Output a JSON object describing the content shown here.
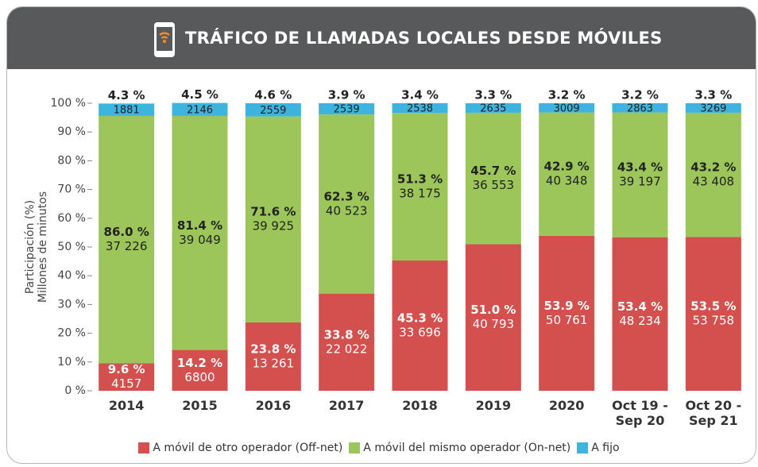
{
  "chart_data": {
    "type": "stacked_bar",
    "title": "TRÁFICO DE LLAMADAS LOCALES DESDE MÓVILES",
    "y_label": [
      "Participación (%)",
      "Millones de minutos"
    ],
    "categories": [
      "2014",
      "2015",
      "2016",
      "2017",
      "2018",
      "2019",
      "2020",
      "Oct 19 - Sep 20",
      "Oct 20 - Sep 21"
    ],
    "series": [
      {
        "name": "A móvil de otro operador (Off-net)",
        "color": "#d4504e",
        "values": [
          9.6,
          14.2,
          23.8,
          33.8,
          45.3,
          51.0,
          53.9,
          53.4,
          53.5
        ],
        "value_labels": [
          "9.6 %",
          "14.2 %",
          "23.8 %",
          "33.8 %",
          "45.3 %",
          "51.0 %",
          "53.9 %",
          "53.4 %",
          "53.5 %"
        ],
        "minutes": [
          4157,
          6800,
          13261,
          22022,
          33696,
          40793,
          50761,
          48234,
          53758
        ],
        "minutes_labels": [
          "4157",
          "6800",
          "13 261",
          "22 022",
          "33 696",
          "40 793",
          "50 761",
          "48 234",
          "53 758"
        ]
      },
      {
        "name": "A móvil del mismo operador (On-net)",
        "color": "#9cc55a",
        "values": [
          86.0,
          81.4,
          71.6,
          62.3,
          51.3,
          45.7,
          42.9,
          43.4,
          43.2
        ],
        "value_labels": [
          "86.0 %",
          "81.4 %",
          "71.6 %",
          "62.3 %",
          "51.3 %",
          "45.7 %",
          "42.9 %",
          "43.4 %",
          "43.2 %"
        ],
        "minutes": [
          37226,
          39049,
          39925,
          40523,
          38175,
          36553,
          40348,
          39197,
          43408
        ],
        "minutes_labels": [
          "37 226",
          "39 049",
          "39 925",
          "40 523",
          "38 175",
          "36 553",
          "40 348",
          "39 197",
          "43 408"
        ]
      },
      {
        "name": "A fijo",
        "color": "#3cb4de",
        "values": [
          4.3,
          4.5,
          4.6,
          3.9,
          3.4,
          3.3,
          3.2,
          3.2,
          3.3
        ],
        "value_labels": [
          "4.3 %",
          "4.5 %",
          "4.6 %",
          "3.9 %",
          "3.4 %",
          "3.3 %",
          "3.2 %",
          "3.2 %",
          "3.3 %"
        ],
        "minutes": [
          1881,
          2146,
          2559,
          2539,
          2538,
          2635,
          3009,
          2863,
          3269
        ],
        "minutes_labels": [
          "1881",
          "2146",
          "2559",
          "2539",
          "2538",
          "2635",
          "3009",
          "2863",
          "3269"
        ]
      }
    ],
    "ylim": [
      0,
      100
    ],
    "yticks": [
      {
        "value": 0,
        "label": "0 %"
      },
      {
        "value": 10,
        "label": "10 %"
      },
      {
        "value": 20,
        "label": "20 %"
      },
      {
        "value": 30,
        "label": "30 %"
      },
      {
        "value": 40,
        "label": "40 %"
      },
      {
        "value": 50,
        "label": "50 %"
      },
      {
        "value": 60,
        "label": "60 %"
      },
      {
        "value": 70,
        "label": "70 %"
      },
      {
        "value": 80,
        "label": "80 %"
      },
      {
        "value": 90,
        "label": "90 %"
      },
      {
        "value": 100,
        "label": "100 %"
      }
    ],
    "legend": "bottom"
  }
}
